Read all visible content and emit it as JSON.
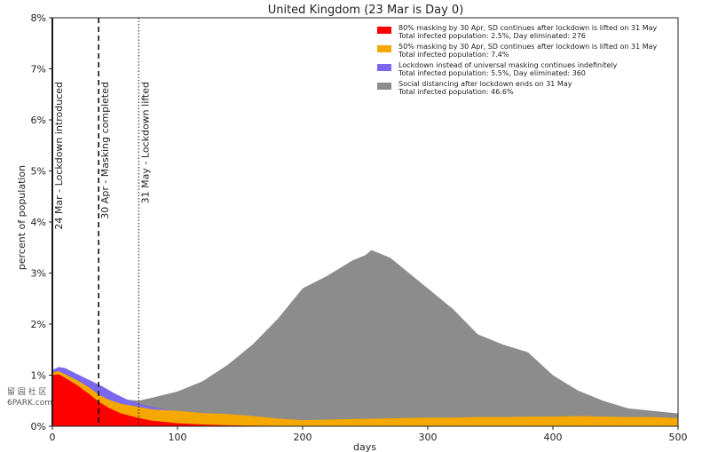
{
  "chart_data": {
    "type": "area",
    "title": "United Kingdom (23 Mar is Day 0)",
    "xlabel": "days",
    "ylabel": "percent of population",
    "xlim": [
      0,
      500
    ],
    "ylim": [
      0,
      8
    ],
    "xticks": [
      0,
      100,
      200,
      300,
      400,
      500
    ],
    "yticks": [
      0,
      1,
      2,
      3,
      4,
      5,
      6,
      7,
      8
    ],
    "ytick_labels": [
      "0%",
      "1%",
      "2%",
      "3%",
      "4%",
      "5%",
      "6%",
      "7%",
      "8%"
    ],
    "grid": false,
    "legend_position": "top-right",
    "vlines": [
      {
        "x": 0,
        "label": "24 Mar - Lockdown introduced",
        "style": "solid"
      },
      {
        "x": 37,
        "label": "30 Apr - Masking completed",
        "style": "dashed"
      },
      {
        "x": 69,
        "label": "31 May - Lockdown lifted",
        "style": "dotted"
      }
    ],
    "series": [
      {
        "name": "Social distancing after lockdown ends on 31 May",
        "summary": "Total infected population: 46.6%",
        "color": "#8c8c8c",
        "x": [
          0,
          5,
          10,
          20,
          30,
          40,
          50,
          60,
          69,
          80,
          90,
          100,
          120,
          140,
          160,
          180,
          200,
          220,
          240,
          250,
          255,
          260,
          270,
          280,
          300,
          320,
          340,
          360,
          380,
          400,
          420,
          440,
          460,
          480,
          500
        ],
        "y": [
          1.1,
          1.14,
          1.12,
          1.0,
          0.86,
          0.72,
          0.6,
          0.52,
          0.5,
          0.56,
          0.62,
          0.68,
          0.88,
          1.2,
          1.6,
          2.1,
          2.7,
          2.95,
          3.25,
          3.35,
          3.45,
          3.4,
          3.3,
          3.1,
          2.7,
          2.3,
          1.8,
          1.6,
          1.45,
          1.0,
          0.7,
          0.5,
          0.35,
          0.3,
          0.25
        ]
      },
      {
        "name": "Lockdown instead of universal masking continues indefinitely",
        "summary": "Total infected population: 5.5%, Day eliminated: 360",
        "color": "#7b68ee",
        "x": [
          0,
          5,
          10,
          20,
          30,
          40,
          50,
          60,
          70,
          80,
          100,
          120,
          140,
          160,
          200,
          250,
          300,
          360,
          500
        ],
        "y": [
          1.1,
          1.16,
          1.14,
          1.02,
          0.9,
          0.78,
          0.64,
          0.52,
          0.44,
          0.38,
          0.28,
          0.2,
          0.13,
          0.08,
          0.03,
          0.01,
          0.005,
          0,
          0
        ]
      },
      {
        "name": "50% masking by 30 Apr, SD continues after lockdown is lifted on 31 May",
        "summary": "Total infected population: 7.4%",
        "color": "#f5a800",
        "x": [
          0,
          5,
          10,
          20,
          30,
          37,
          45,
          55,
          69,
          80,
          100,
          120,
          140,
          160,
          180,
          200,
          220,
          240,
          260,
          280,
          300,
          320,
          340,
          360,
          380,
          400,
          420,
          440,
          460,
          480,
          500
        ],
        "y": [
          1.05,
          1.08,
          1.02,
          0.9,
          0.75,
          0.62,
          0.52,
          0.44,
          0.38,
          0.33,
          0.3,
          0.26,
          0.24,
          0.2,
          0.15,
          0.12,
          0.13,
          0.14,
          0.15,
          0.16,
          0.17,
          0.17,
          0.18,
          0.18,
          0.19,
          0.19,
          0.2,
          0.19,
          0.18,
          0.18,
          0.16
        ]
      },
      {
        "name": "80% masking by 30 Apr, SD continues after lockdown is lifted on 31 May",
        "summary": "Total infected population: 2.5%, Day eliminated: 276",
        "color": "#ff0000",
        "x": [
          0,
          5,
          10,
          20,
          30,
          37,
          45,
          55,
          69,
          80,
          100,
          120,
          140,
          160,
          200,
          240,
          276,
          500
        ],
        "y": [
          1.0,
          1.02,
          0.95,
          0.8,
          0.62,
          0.48,
          0.36,
          0.25,
          0.16,
          0.11,
          0.06,
          0.035,
          0.02,
          0.01,
          0.004,
          0.001,
          0,
          0
        ]
      }
    ],
    "legend_order": [
      3,
      2,
      1,
      0
    ]
  },
  "watermark": {
    "line1": "留 园 社 区",
    "line2": "6PARK.com"
  }
}
